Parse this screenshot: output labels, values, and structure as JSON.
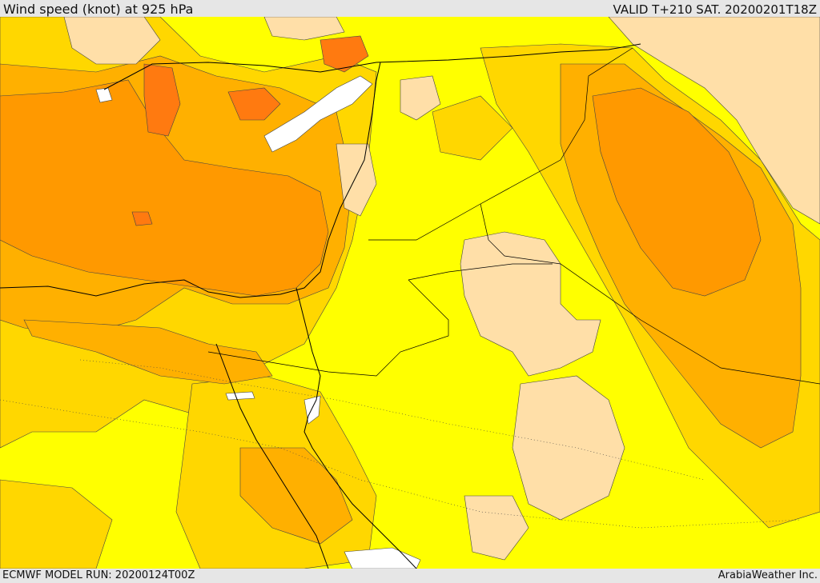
{
  "header": {
    "title": "Wind speed (knot) at 925 hPa",
    "valid": "VALID T+210 SAT. 20200201T18Z"
  },
  "footer": {
    "model_run": "ECMWF MODEL RUN: 20200124T00Z",
    "credit": "ArabiaWeather Inc."
  },
  "map": {
    "variable": "Wind speed",
    "units": "knot",
    "level": "925 hPa",
    "palette": {
      "calm": "#ffffff",
      "light": "#ffdfa8",
      "moderate": "#ffff00",
      "fresh": "#ffd700",
      "strong": "#ffb000",
      "very_strong": "#ff9900",
      "max": "#ff7a10"
    }
  }
}
